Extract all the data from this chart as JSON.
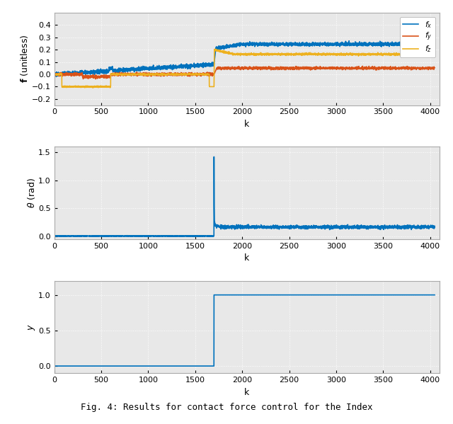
{
  "xlim": [
    0,
    4100
  ],
  "xticks": [
    0,
    500,
    1000,
    1500,
    2000,
    2500,
    3000,
    3500,
    4000
  ],
  "subplot1": {
    "ylabel": "$\\mathbf{f}$ (unitless)",
    "ylim": [
      -0.25,
      0.5
    ],
    "yticks": [
      -0.2,
      -0.1,
      0.0,
      0.1,
      0.2,
      0.3,
      0.4
    ],
    "xlabel": "k",
    "legend": [
      "$f_x$",
      "$f_y$",
      "$f_z$"
    ],
    "colors": [
      "#0072BD",
      "#D95319",
      "#EDB120"
    ],
    "transition_k": 1700
  },
  "subplot2": {
    "ylabel": "$\\theta$ (rad)",
    "ylim": [
      -0.05,
      1.6
    ],
    "yticks": [
      0.0,
      0.5,
      1.0,
      1.5
    ],
    "xlabel": "k",
    "color": "#0072BD",
    "transition_k": 1700
  },
  "subplot3": {
    "ylabel": "$y$",
    "ylim": [
      -0.1,
      1.2
    ],
    "yticks": [
      0.0,
      0.5,
      1.0
    ],
    "xlabel": "k",
    "color": "#0072BD",
    "transition_k": 1700
  },
  "bg_color": "#e8e8e8",
  "grid_color": "#ffffff",
  "caption": "Fig. 4: Results for contact force control for the Index",
  "linewidth": 1.2
}
